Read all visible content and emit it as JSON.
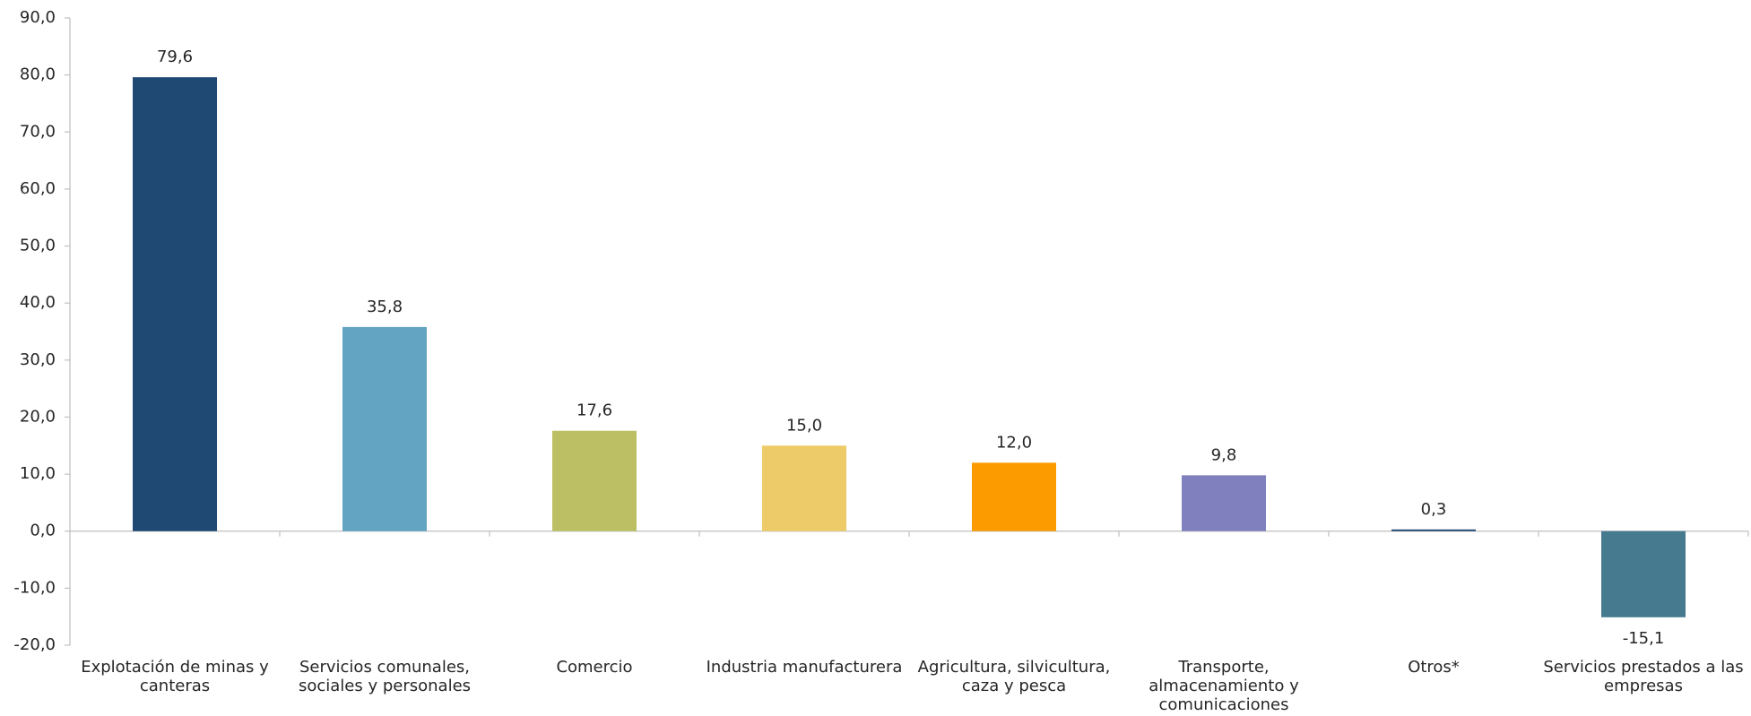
{
  "chart_data": {
    "type": "bar",
    "categories": [
      "Explotación de minas y canteras",
      "Servicios comunales, sociales y personales",
      "Comercio",
      "Industria manufacturera",
      "Agricultura, silvicultura, caza y pesca",
      "Transporte, almacenamiento y comunicaciones",
      "Otros*",
      "Servicios prestados a las empresas"
    ],
    "values": [
      79.6,
      35.8,
      17.6,
      15.0,
      12.0,
      9.8,
      0.3,
      -15.1
    ],
    "value_labels": [
      "79,6",
      "35,8",
      "17,6",
      "15,0",
      "12,0",
      "9,8",
      "0,3",
      "-15,1"
    ],
    "colors": [
      "#1f4873",
      "#63a4c2",
      "#bdbf65",
      "#eecb69",
      "#fb9b00",
      "#8080be",
      "#1f4873",
      "#457a8f"
    ],
    "ylim": [
      -20,
      90
    ],
    "yticks": [
      {
        "value": -20,
        "label": "-20,0"
      },
      {
        "value": -10,
        "label": "-10,0"
      },
      {
        "value": 0,
        "label": "0,0"
      },
      {
        "value": 10,
        "label": "10,0"
      },
      {
        "value": 20,
        "label": "20,0"
      },
      {
        "value": 30,
        "label": "30,0"
      },
      {
        "value": 40,
        "label": "40,0"
      },
      {
        "value": 50,
        "label": "50,0"
      },
      {
        "value": 60,
        "label": "60,0"
      },
      {
        "value": 70,
        "label": "70,0"
      },
      {
        "value": 80,
        "label": "80,0"
      },
      {
        "value": 90,
        "label": "90,0"
      }
    ],
    "grid": false
  }
}
